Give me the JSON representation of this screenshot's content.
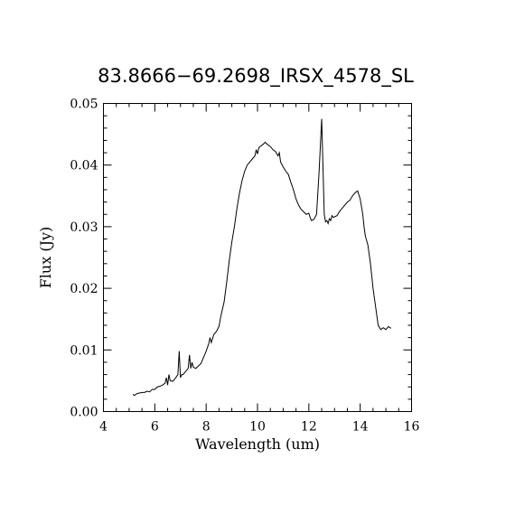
{
  "chart_data": {
    "type": "line",
    "title": "83.8666−69.2698_IRSX_4578_SL",
    "xlabel": "Wavelength (um)",
    "ylabel": "Flux (Jy)",
    "xlim": [
      4,
      16
    ],
    "ylim": [
      0.0,
      0.05
    ],
    "xticks": [
      4,
      6,
      8,
      10,
      12,
      14,
      16
    ],
    "xtick_labels": [
      "4",
      "6",
      "8",
      "10",
      "12",
      "14",
      "16"
    ],
    "yticks": [
      0.0,
      0.01,
      0.02,
      0.03,
      0.04,
      0.05
    ],
    "ytick_labels": [
      "0.00",
      "0.01",
      "0.02",
      "0.03",
      "0.04",
      "0.05"
    ],
    "grid": false,
    "legend": "none",
    "color": "#000000",
    "x": [
      5.15,
      5.2,
      5.3,
      5.4,
      5.5,
      5.6,
      5.7,
      5.8,
      5.9,
      6.0,
      6.1,
      6.2,
      6.3,
      6.4,
      6.45,
      6.5,
      6.55,
      6.6,
      6.7,
      6.8,
      6.9,
      6.95,
      7.0,
      7.05,
      7.1,
      7.2,
      7.3,
      7.35,
      7.4,
      7.45,
      7.5,
      7.6,
      7.7,
      7.8,
      7.9,
      8.0,
      8.1,
      8.15,
      8.2,
      8.3,
      8.4,
      8.5,
      8.55,
      8.6,
      8.7,
      8.8,
      8.9,
      9.0,
      9.1,
      9.2,
      9.3,
      9.4,
      9.5,
      9.6,
      9.7,
      9.8,
      9.9,
      9.95,
      10.0,
      10.05,
      10.1,
      10.2,
      10.3,
      10.4,
      10.5,
      10.6,
      10.7,
      10.8,
      10.85,
      10.9,
      11.0,
      11.1,
      11.2,
      11.3,
      11.4,
      11.5,
      11.6,
      11.7,
      11.8,
      11.9,
      12.0,
      12.05,
      12.1,
      12.2,
      12.3,
      12.4,
      12.5,
      12.6,
      12.65,
      12.7,
      12.75,
      12.8,
      12.85,
      12.9,
      12.95,
      13.0,
      13.1,
      13.2,
      13.3,
      13.4,
      13.5,
      13.6,
      13.7,
      13.8,
      13.9,
      14.0,
      14.1,
      14.15,
      14.2,
      14.3,
      14.4,
      14.5,
      14.6,
      14.7,
      14.8,
      14.9,
      15.0,
      15.1,
      15.2
    ],
    "y": [
      0.0028,
      0.0026,
      0.0029,
      0.003,
      0.0031,
      0.0031,
      0.0033,
      0.0032,
      0.0036,
      0.0036,
      0.004,
      0.0041,
      0.0043,
      0.0046,
      0.0055,
      0.0043,
      0.006,
      0.005,
      0.0049,
      0.0054,
      0.006,
      0.0098,
      0.0055,
      0.006,
      0.006,
      0.0065,
      0.007,
      0.0092,
      0.007,
      0.008,
      0.0072,
      0.007,
      0.0074,
      0.0078,
      0.0088,
      0.0098,
      0.011,
      0.012,
      0.0112,
      0.0125,
      0.013,
      0.0138,
      0.015,
      0.016,
      0.0178,
      0.021,
      0.0245,
      0.0275,
      0.03,
      0.033,
      0.0355,
      0.0375,
      0.039,
      0.04,
      0.0405,
      0.041,
      0.0415,
      0.0425,
      0.0418,
      0.0428,
      0.043,
      0.0433,
      0.0437,
      0.0433,
      0.043,
      0.0425,
      0.0422,
      0.0415,
      0.042,
      0.0405,
      0.0397,
      0.039,
      0.0385,
      0.0372,
      0.036,
      0.0345,
      0.0335,
      0.0328,
      0.0324,
      0.032,
      0.0322,
      0.0315,
      0.031,
      0.0312,
      0.032,
      0.039,
      0.0475,
      0.032,
      0.0308,
      0.031,
      0.0305,
      0.0313,
      0.031,
      0.0318,
      0.0315,
      0.0316,
      0.0318,
      0.0325,
      0.033,
      0.0335,
      0.034,
      0.0343,
      0.035,
      0.0355,
      0.0358,
      0.0345,
      0.032,
      0.03,
      0.0285,
      0.027,
      0.024,
      0.02,
      0.017,
      0.014,
      0.0133,
      0.0136,
      0.0133,
      0.0138,
      0.0135
    ]
  }
}
